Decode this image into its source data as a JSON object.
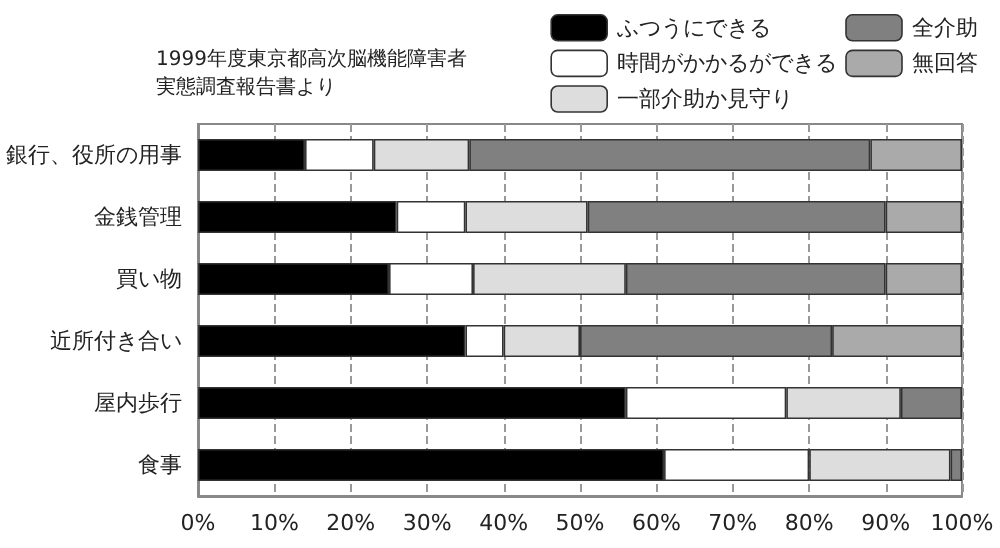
{
  "chart_data": {
    "type": "bar",
    "orientation": "horizontal",
    "stacked": true,
    "categories": [
      "銀行、役所の用事",
      "金銭管理",
      "買い物",
      "近所付き合い",
      "屋内歩行",
      "食事"
    ],
    "series": [
      {
        "name": "ふつうにできる",
        "color": "#000000",
        "values": [
          14,
          26,
          25,
          35,
          56,
          61
        ]
      },
      {
        "name": "時間がかかるができる",
        "color": "#ffffff",
        "values": [
          9,
          9,
          11,
          5,
          21,
          19
        ]
      },
      {
        "name": "一部介助か見守り",
        "color": "#dddddd",
        "values": [
          12.5,
          16,
          20,
          10,
          15,
          18.5
        ]
      },
      {
        "name": "全介助",
        "color": "#808080",
        "values": [
          52.5,
          39,
          34,
          33,
          8,
          1.5
        ]
      },
      {
        "name": "無回答",
        "color": "#aaaaaa",
        "values": [
          12,
          10,
          10,
          17,
          null,
          null
        ]
      }
    ],
    "xlim": [
      0,
      100
    ],
    "xticks": [
      {
        "value": 0,
        "label": "0%"
      },
      {
        "value": 10,
        "label": "10%"
      },
      {
        "value": 20,
        "label": "20%"
      },
      {
        "value": 30,
        "label": "30%"
      },
      {
        "value": 40,
        "label": "40%"
      },
      {
        "value": 50,
        "label": "50%"
      },
      {
        "value": 60,
        "label": "60%"
      },
      {
        "value": 70,
        "label": "70%"
      },
      {
        "value": 80,
        "label": "80%"
      },
      {
        "value": 90,
        "label": "90%"
      },
      {
        "value": 100,
        "label": "100%"
      }
    ],
    "grid": "x",
    "legend": "top right",
    "annotations": [
      "1999年度東京都高次脳機能障害者",
      "実態調査報告書より"
    ]
  }
}
